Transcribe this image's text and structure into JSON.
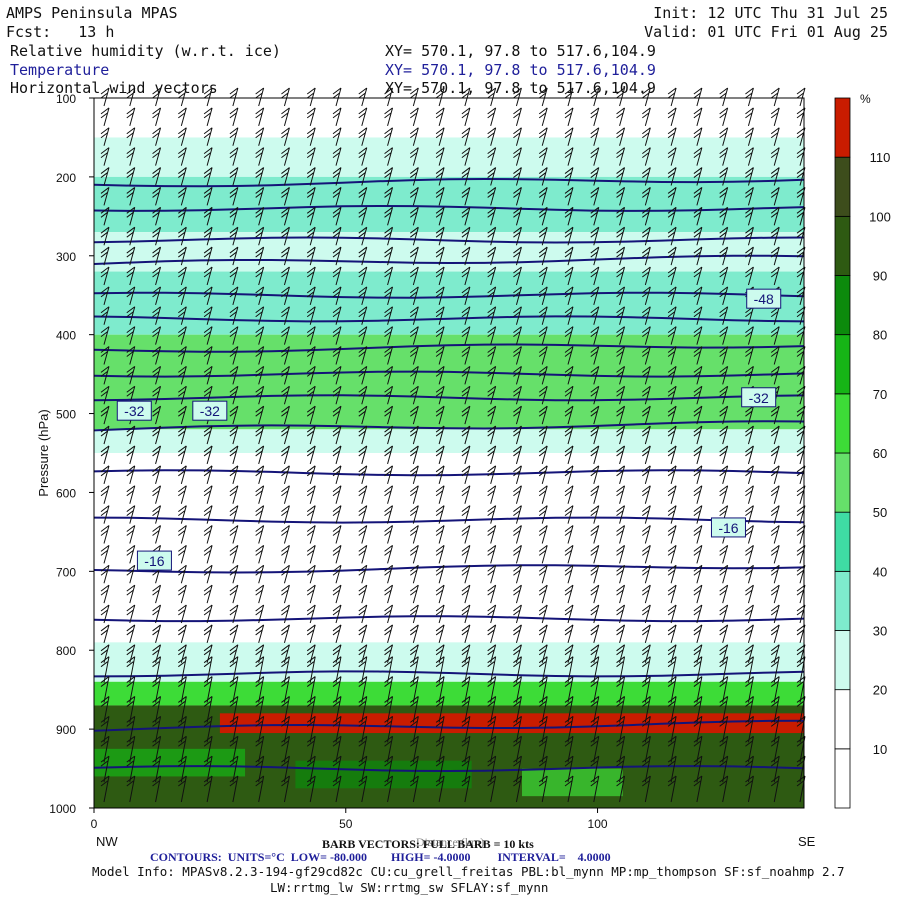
{
  "header": {
    "model_title": "AMPS Peninsula MPAS",
    "forecast": "Fcst:   13 h",
    "init": "Init: 12 UTC Thu 31 Jul 25",
    "valid": "Valid: 01 UTC Fri 01 Aug 25",
    "field1_name": "Relative humidity (w.r.t. ice)",
    "field2_name": "Temperature",
    "field3_name": "Horizontal wind vectors",
    "xy1": "XY= 570.1, 97.8 to 517.6,104.9",
    "xy2": "XY= 570.1, 97.8 to 517.6,104.9",
    "xy3": "XY= 570.1, 97.8 to 517.6,104.9"
  },
  "footer": {
    "barb_label": "BARB VECTORS: FULL BARB = 10 kts",
    "distance_label": "Distance (km)",
    "contours": "CONTOURS:  UNITS=°C  LOW= -80.000        HIGH= -4.0000         INTERVAL=    4.0000",
    "model_info_1": "Model Info: MPASv8.2.3-194-gf29cd82c CU:cu_grell_freitas PBL:bl_mynn MP:mp_thompson SF:sf_noahmp 2.7",
    "model_info_2": "LW:rrtmg_lw SW:rrtmg_sw SFLAY:sf_mynn"
  },
  "chart_data": {
    "type": "heatmap",
    "xlabel": "",
    "ylabel": "Pressure (hPa)",
    "x_ticks": [
      0,
      50,
      100
    ],
    "x_end_labels": {
      "left": "NW",
      "right": "SE"
    },
    "y_ticks": [
      100,
      200,
      300,
      400,
      500,
      600,
      700,
      800,
      900,
      1000
    ],
    "ylim": [
      1000,
      100
    ],
    "xlim": [
      0,
      141
    ],
    "colorbar": {
      "unit": "%",
      "levels": [
        10,
        20,
        30,
        40,
        50,
        60,
        70,
        80,
        90,
        100,
        110
      ],
      "colors": [
        "#ffffff",
        "#ffffff",
        "#cdfbee",
        "#7eebcd",
        "#3fdca4",
        "#66e06a",
        "#3ddc37",
        "#16b516",
        "#0c8a0c",
        "#2e5a12",
        "#3d4d1c",
        "#c91c00"
      ]
    },
    "rh_bands": [
      {
        "p_top": 100,
        "p_bot": 150,
        "color": "#ffffff"
      },
      {
        "p_top": 150,
        "p_bot": 200,
        "color": "#cdfbee"
      },
      {
        "p_top": 200,
        "p_bot": 270,
        "color": "#7eebcd"
      },
      {
        "p_top": 270,
        "p_bot": 320,
        "color": "#cdfbee"
      },
      {
        "p_top": 320,
        "p_bot": 400,
        "color": "#7eebcd"
      },
      {
        "p_top": 400,
        "p_bot": 520,
        "color": "#66e06a"
      },
      {
        "p_top": 520,
        "p_bot": 550,
        "color": "#cdfbee"
      },
      {
        "p_top": 550,
        "p_bot": 790,
        "color": "#ffffff"
      },
      {
        "p_top": 790,
        "p_bot": 840,
        "color": "#cdfbee"
      },
      {
        "p_top": 840,
        "p_bot": 870,
        "color": "#3ddc37"
      },
      {
        "p_top": 870,
        "p_bot": 1000,
        "color": "#2e5a12"
      }
    ],
    "rh_max_band": {
      "p_top": 880,
      "p_bot": 905,
      "x_start": 25,
      "x_end": 141,
      "color": "#c91c00"
    },
    "temperature_contours_pressure": [
      210,
      240,
      280,
      310,
      350,
      380,
      420,
      450,
      480,
      520,
      575,
      635,
      700,
      760,
      830,
      900,
      950
    ],
    "temperature_labels": [
      {
        "text": "-48",
        "x": 133,
        "p": 355
      },
      {
        "text": "-32",
        "x": 8,
        "p": 497
      },
      {
        "text": "-32",
        "x": 23,
        "p": 497
      },
      {
        "text": "-32",
        "x": 132,
        "p": 480
      },
      {
        "text": "-16",
        "x": 12,
        "p": 687
      },
      {
        "text": "-16",
        "x": 126,
        "p": 645
      }
    ],
    "wind_barb_spacing": {
      "columns": 28,
      "rows": 36
    }
  }
}
